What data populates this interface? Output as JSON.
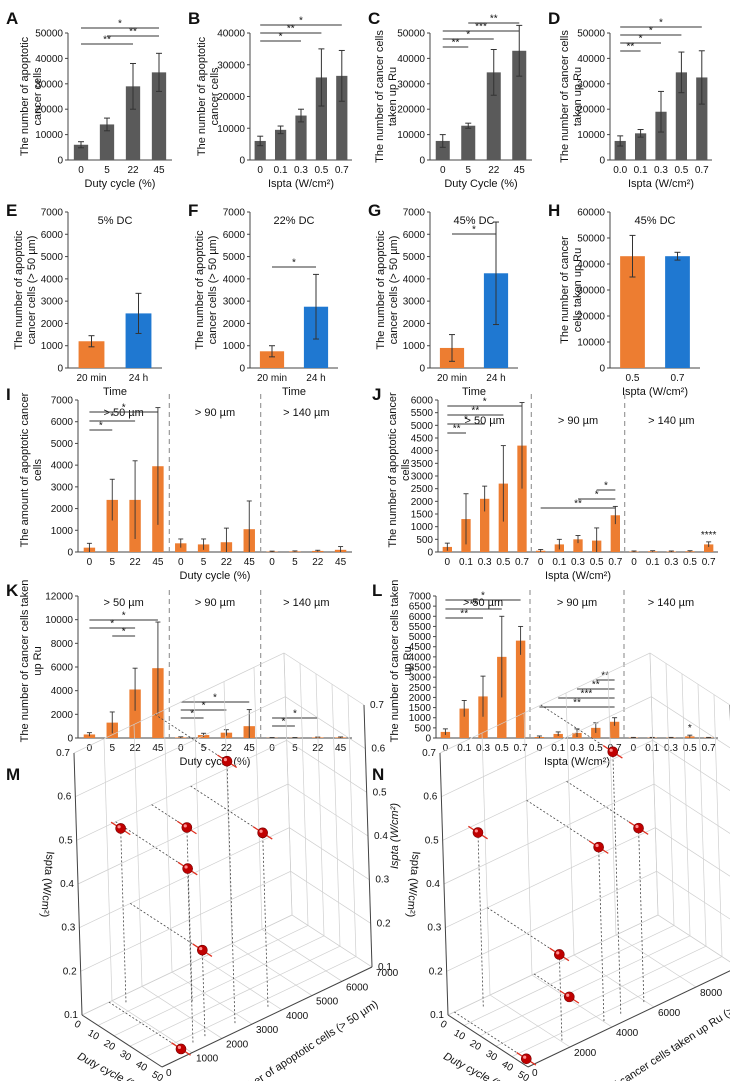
{
  "colors": {
    "bar_gray": "#5a5a5a",
    "bar_orange": "#ed7d31",
    "bar_blue": "#1f78d1",
    "sphere": "#c00000",
    "err": "#333333",
    "trend": "#e03020"
  },
  "chart_data": [
    {
      "id": "A",
      "type": "bar",
      "panel_label": "A",
      "ylabel": "The number of apoptotic cancer cells",
      "xlabel": "Duty cycle (%)",
      "categories": [
        "0",
        "5",
        "22",
        "45"
      ],
      "values": [
        6000,
        14000,
        29000,
        34500
      ],
      "errors": [
        1200,
        2500,
        9000,
        7500
      ],
      "ylim": [
        0,
        50000
      ],
      "yticks": [
        "0",
        "10000",
        "20000",
        "30000",
        "40000",
        "50000"
      ],
      "sig": [
        {
          "from": 0,
          "to": 3,
          "label": "*"
        },
        {
          "from": 1,
          "to": 3,
          "label": "**"
        },
        {
          "from": 0,
          "to": 2,
          "label": "**"
        }
      ]
    },
    {
      "id": "B",
      "type": "bar",
      "panel_label": "B",
      "ylabel": "The number of apoptotic cancer cells",
      "xlabel": "Ispta (W/cm²)",
      "categories": [
        "0",
        "0.1",
        "0.3",
        "0.5",
        "0.7"
      ],
      "values": [
        6000,
        9500,
        14000,
        26000,
        26500
      ],
      "errors": [
        1500,
        1200,
        2000,
        9000,
        8000
      ],
      "ylim": [
        0,
        40000
      ],
      "yticks": [
        "0",
        "10000",
        "20000",
        "30000",
        "40000"
      ],
      "sig": [
        {
          "from": 0,
          "to": 4,
          "label": "*"
        },
        {
          "from": 0,
          "to": 3,
          "label": "**"
        },
        {
          "from": 0,
          "to": 2,
          "label": "*"
        }
      ]
    },
    {
      "id": "C",
      "type": "bar",
      "panel_label": "C",
      "ylabel": "The number of cancer cells taken up Ru",
      "xlabel": "Duty Cycle (%)",
      "categories": [
        "0",
        "5",
        "22",
        "45"
      ],
      "values": [
        7500,
        13500,
        34500,
        43000
      ],
      "errors": [
        2500,
        1000,
        9000,
        10000
      ],
      "ylim": [
        0,
        50000
      ],
      "yticks": [
        "0",
        "10000",
        "20000",
        "30000",
        "40000",
        "50000"
      ],
      "sig": [
        {
          "from": 1,
          "to": 3,
          "label": "**"
        },
        {
          "from": 0,
          "to": 3,
          "label": "***"
        },
        {
          "from": 0,
          "to": 2,
          "label": "*"
        },
        {
          "from": 0,
          "to": 1,
          "label": "**"
        }
      ]
    },
    {
      "id": "D",
      "type": "bar",
      "panel_label": "D",
      "ylabel": "The number of cancer cells taken up Ru",
      "xlabel": "Ispta (W/cm²)",
      "categories": [
        "0.0",
        "0.1",
        "0.3",
        "0.5",
        "0.7"
      ],
      "values": [
        7500,
        10500,
        19000,
        34500,
        32500
      ],
      "errors": [
        2000,
        1500,
        8000,
        8000,
        10500
      ],
      "ylim": [
        0,
        50000
      ],
      "yticks": [
        "0",
        "10000",
        "20000",
        "30000",
        "40000",
        "50000"
      ],
      "sig": [
        {
          "from": 0,
          "to": 4,
          "label": "*"
        },
        {
          "from": 0,
          "to": 3,
          "label": "*"
        },
        {
          "from": 0,
          "to": 2,
          "label": "*"
        },
        {
          "from": 0,
          "to": 1,
          "label": "**"
        }
      ]
    },
    {
      "id": "E",
      "type": "bar",
      "panel_label": "E",
      "title": "5% DC",
      "ylabel": "The number of apoptotic cancer cells (> 50 µm)",
      "xlabel": "Time",
      "categories": [
        "20 min",
        "24 h"
      ],
      "values": [
        1200,
        2450
      ],
      "errors": [
        250,
        900
      ],
      "colors": [
        "orange",
        "blue"
      ],
      "ylim": [
        0,
        7000
      ],
      "yticks": [
        "0",
        "1000",
        "2000",
        "3000",
        "4000",
        "5000",
        "6000",
        "7000"
      ],
      "sig": []
    },
    {
      "id": "F",
      "type": "bar",
      "panel_label": "F",
      "title": "22% DC",
      "ylabel": "The number of apoptotic cancer cells (> 50 µm)",
      "xlabel": "Time",
      "categories": [
        "20 min",
        "24 h"
      ],
      "values": [
        750,
        2750
      ],
      "errors": [
        250,
        1450
      ],
      "colors": [
        "orange",
        "blue"
      ],
      "ylim": [
        0,
        7000
      ],
      "yticks": [
        "0",
        "1000",
        "2000",
        "3000",
        "4000",
        "5000",
        "6000",
        "7000"
      ],
      "sig": [
        {
          "from": 0,
          "to": 1,
          "label": "*"
        }
      ]
    },
    {
      "id": "G",
      "type": "bar",
      "panel_label": "G",
      "title": "45% DC",
      "ylabel": "The number of apoptotic cancer cells (> 50 µm)",
      "xlabel": "Time",
      "categories": [
        "20 min",
        "24 h"
      ],
      "values": [
        900,
        4250
      ],
      "errors": [
        600,
        2300
      ],
      "colors": [
        "orange",
        "blue"
      ],
      "ylim": [
        0,
        7000
      ],
      "yticks": [
        "0",
        "1000",
        "2000",
        "3000",
        "4000",
        "5000",
        "6000",
        "7000"
      ],
      "sig": [
        {
          "from": 0,
          "to": 1,
          "label": "*"
        }
      ]
    },
    {
      "id": "H",
      "type": "bar",
      "panel_label": "H",
      "title": "45% DC",
      "ylabel": "The number of cancer cells taken up Ru",
      "xlabel": "Ispta (W/cm²)",
      "categories": [
        "0.5",
        "0.7"
      ],
      "values": [
        43000,
        43000
      ],
      "errors": [
        8000,
        1500
      ],
      "colors": [
        "orange",
        "blue"
      ],
      "ylim": [
        0,
        60000
      ],
      "yticks": [
        "0",
        "10000",
        "20000",
        "30000",
        "40000",
        "50000",
        "60000"
      ],
      "sig": []
    },
    {
      "id": "I",
      "type": "grouped_bar",
      "panel_label": "I",
      "ylabel": "The amount of apoptotic cancer cells",
      "xlabel": "Duty cycle (%)",
      "groups": [
        "> 50 µm",
        "> 90 µm",
        "> 140 µm"
      ],
      "categories": [
        "0",
        "5",
        "22",
        "45"
      ],
      "values": [
        [
          200,
          2400,
          2400,
          3950
        ],
        [
          400,
          350,
          450,
          1050
        ],
        [
          20,
          30,
          50,
          100
        ]
      ],
      "errors": [
        [
          200,
          950,
          1800,
          2700
        ],
        [
          200,
          250,
          650,
          1300
        ],
        [
          20,
          20,
          30,
          150
        ]
      ],
      "ylim": [
        0,
        7000
      ],
      "yticks": [
        "0",
        "1000",
        "2000",
        "3000",
        "4000",
        "5000",
        "6000",
        "7000"
      ],
      "sig": [
        {
          "group": 0,
          "from": 0,
          "to": 3,
          "label": "*"
        },
        {
          "group": 0,
          "from": 0,
          "to": 2,
          "label": "*"
        },
        {
          "group": 0,
          "from": 0,
          "to": 1,
          "label": "*"
        }
      ]
    },
    {
      "id": "J",
      "type": "grouped_bar",
      "panel_label": "J",
      "ylabel": "The number of apoptotic cancer cells",
      "xlabel": "Ispta (W/cm²)",
      "groups": [
        "> 50 µm",
        "> 90 µm",
        "> 140 µm"
      ],
      "categories": [
        "0",
        "0.1",
        "0.3",
        "0.5",
        "0.7"
      ],
      "values": [
        [
          200,
          1300,
          2100,
          2700,
          4200
        ],
        [
          50,
          300,
          500,
          450,
          1450
        ],
        [
          20,
          30,
          20,
          30,
          300
        ]
      ],
      "errors": [
        [
          150,
          1000,
          500,
          1500,
          1700
        ],
        [
          50,
          200,
          150,
          500,
          350
        ],
        [
          20,
          20,
          20,
          20,
          100
        ]
      ],
      "ylim": [
        0,
        6000
      ],
      "yticks": [
        "0",
        "500",
        "1000",
        "1500",
        "2000",
        "2500",
        "3000",
        "3500",
        "4000",
        "4500",
        "5000",
        "5500",
        "6000"
      ],
      "sig": [
        {
          "group": 0,
          "from": 0,
          "to": 4,
          "label": "*"
        },
        {
          "group": 0,
          "from": 0,
          "to": 3,
          "label": "**"
        },
        {
          "group": 0,
          "from": 0,
          "to": 2,
          "label": "*"
        },
        {
          "group": 0,
          "from": 0,
          "to": 1,
          "label": "**"
        },
        {
          "group": 1,
          "from": 3,
          "to": 4,
          "label": "*"
        },
        {
          "group": 1,
          "from": 2,
          "to": 4,
          "label": "*"
        },
        {
          "group": 1,
          "from": 0,
          "to": 4,
          "label": "**"
        },
        {
          "group": 2,
          "at": 4,
          "label": "****"
        }
      ]
    },
    {
      "id": "K",
      "type": "grouped_bar",
      "panel_label": "K",
      "ylabel": "The number of cancer cells taken up Ru",
      "xlabel": "Duty cycle (%)",
      "groups": [
        "> 50 µm",
        "> 90 µm",
        "> 140 µm"
      ],
      "categories": [
        "0",
        "5",
        "22",
        "45"
      ],
      "values": [
        [
          300,
          1300,
          4100,
          5900
        ],
        [
          50,
          250,
          450,
          1000
        ],
        [
          20,
          20,
          50,
          50
        ]
      ],
      "errors": [
        [
          150,
          900,
          1800,
          3900
        ],
        [
          50,
          150,
          250,
          1400
        ],
        [
          20,
          20,
          30,
          40
        ]
      ],
      "ylim": [
        0,
        12000
      ],
      "yticks": [
        "0",
        "2000",
        "4000",
        "6000",
        "8000",
        "10000",
        "12000"
      ],
      "sig": [
        {
          "group": 0,
          "from": 0,
          "to": 3,
          "label": "*"
        },
        {
          "group": 0,
          "from": 0,
          "to": 2,
          "label": "*"
        },
        {
          "group": 0,
          "from": 1,
          "to": 2,
          "label": "*"
        },
        {
          "group": 1,
          "from": 0,
          "to": 3,
          "label": "*"
        },
        {
          "group": 1,
          "from": 0,
          "to": 2,
          "label": "*"
        },
        {
          "group": 1,
          "from": 0,
          "to": 1,
          "label": "*"
        },
        {
          "group": 2,
          "from": 0,
          "to": 2,
          "label": "*"
        },
        {
          "group": 2,
          "from": 0,
          "to": 1,
          "label": "*"
        }
      ]
    },
    {
      "id": "L",
      "type": "grouped_bar",
      "panel_label": "L",
      "ylabel": "The number of cancer cells taken up Ru",
      "xlabel": "Ispta (W/cm²)",
      "groups": [
        "> 50 µm",
        "> 90 µm",
        "> 140 µm"
      ],
      "categories": [
        "0",
        "0.1",
        "0.3",
        "0.5",
        "0.7"
      ],
      "values": [
        [
          300,
          1450,
          2050,
          4000,
          4800
        ],
        [
          50,
          200,
          250,
          500,
          800
        ],
        [
          20,
          20,
          20,
          80,
          20
        ]
      ],
      "errors": [
        [
          150,
          400,
          1000,
          2000,
          700
        ],
        [
          50,
          100,
          200,
          250,
          200
        ],
        [
          10,
          10,
          10,
          60,
          10
        ]
      ],
      "ylim": [
        0,
        7000
      ],
      "yticks": [
        "0",
        "500",
        "1000",
        "1500",
        "2000",
        "2500",
        "3000",
        "3500",
        "4000",
        "4500",
        "5000",
        "5500",
        "6000",
        "6500",
        "7000"
      ],
      "sig": [
        {
          "group": 0,
          "from": 0,
          "to": 4,
          "label": "*"
        },
        {
          "group": 0,
          "from": 0,
          "to": 3,
          "label": "**"
        },
        {
          "group": 0,
          "from": 0,
          "to": 2,
          "label": "**"
        },
        {
          "group": 1,
          "from": 3,
          "to": 4,
          "label": "**"
        },
        {
          "group": 1,
          "from": 2,
          "to": 4,
          "label": "**"
        },
        {
          "group": 1,
          "from": 1,
          "to": 4,
          "label": "***"
        },
        {
          "group": 1,
          "from": 0,
          "to": 4,
          "label": "**"
        },
        {
          "group": 2,
          "at": 3,
          "label": "*"
        }
      ]
    },
    {
      "id": "M",
      "type": "scatter3d",
      "panel_label": "M",
      "xlabel": "Duty cycle (%)",
      "ylabel": "The number of apoptotic cells (> 50 µm)",
      "zlabel": "Ispta (W/cm²)",
      "xticks": [
        "0",
        "10",
        "20",
        "30",
        "40",
        "50"
      ],
      "yticks": [
        "0",
        "1000",
        "2000",
        "3000",
        "4000",
        "5000",
        "6000",
        "7000"
      ],
      "zticks": [
        "0.1",
        "0.2",
        "0.3",
        "0.4",
        "0.5",
        "0.6",
        "0.7"
      ],
      "points": [
        [
          45,
          2700,
          0.7
        ],
        [
          45,
          3800,
          0.5
        ],
        [
          22,
          2500,
          0.5
        ],
        [
          45,
          1300,
          0.5
        ],
        [
          5,
          1200,
          0.5
        ],
        [
          45,
          1700,
          0.3
        ],
        [
          45,
          900,
          0.1
        ]
      ]
    },
    {
      "id": "N",
      "type": "scatter3d",
      "panel_label": "N",
      "xlabel": "Duty cycle (%)",
      "ylabel": "The number of cancer cells taken up Ru (> 50 µm)",
      "zlabel": "Ispta (W/cm²)",
      "xticks": [
        "0",
        "10",
        "20",
        "30",
        "40",
        "50"
      ],
      "yticks": [
        "0",
        "2000",
        "4000",
        "6000",
        "8000",
        "10000"
      ],
      "zticks": [
        "0.1",
        "0.2",
        "0.3",
        "0.4",
        "0.5",
        "0.6",
        "0.7"
      ],
      "points": [
        [
          45,
          4800,
          0.7
        ],
        [
          45,
          5900,
          0.5
        ],
        [
          45,
          4000,
          0.5
        ],
        [
          5,
          1300,
          0.5
        ],
        [
          45,
          2000,
          0.3
        ],
        [
          22,
          4100,
          0.1
        ],
        [
          45,
          300,
          0.1
        ]
      ]
    }
  ]
}
